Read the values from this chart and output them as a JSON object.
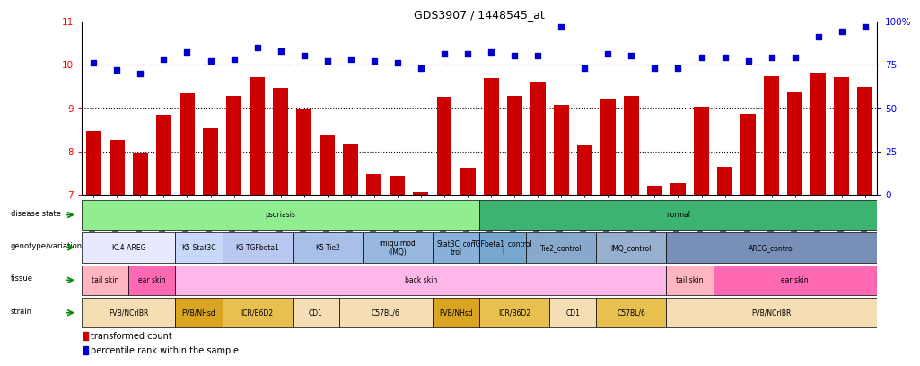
{
  "title": "GDS3907 / 1448545_at",
  "sample_ids": [
    "GSM684694",
    "GSM684695",
    "GSM684696",
    "GSM684688",
    "GSM684689",
    "GSM684690",
    "GSM684700",
    "GSM684701",
    "GSM684704",
    "GSM684705",
    "GSM684706",
    "GSM684676",
    "GSM684677",
    "GSM684678",
    "GSM684682",
    "GSM684683",
    "GSM684684",
    "GSM684702",
    "GSM684703",
    "GSM684707",
    "GSM684708",
    "GSM684709",
    "GSM684679",
    "GSM684680",
    "GSM684661",
    "GSM684685",
    "GSM684686",
    "GSM684687",
    "GSM684697",
    "GSM684698",
    "GSM684699",
    "GSM684691",
    "GSM684692",
    "GSM684693"
  ],
  "bar_values": [
    8.47,
    8.26,
    7.94,
    8.84,
    9.34,
    8.53,
    9.27,
    9.72,
    9.46,
    8.98,
    8.38,
    8.17,
    7.47,
    7.44,
    7.05,
    9.25,
    7.62,
    9.68,
    9.28,
    9.6,
    9.06,
    8.14,
    9.21,
    9.27,
    7.2,
    7.27,
    9.02,
    7.63,
    8.86,
    9.73,
    9.35,
    9.82,
    9.7,
    9.48
  ],
  "dot_pct": [
    76,
    72,
    70,
    78,
    82,
    77,
    78,
    85,
    83,
    80,
    77,
    78,
    77,
    76,
    73,
    81,
    81,
    82,
    80,
    80,
    97,
    73,
    81,
    80,
    73,
    73,
    79,
    79,
    77,
    79,
    79,
    91,
    94,
    97
  ],
  "ylim_left": [
    7,
    11
  ],
  "ylim_right": [
    0,
    100
  ],
  "yticks_left": [
    7,
    8,
    9,
    10,
    11
  ],
  "yticks_right": [
    0,
    25,
    50,
    75,
    100
  ],
  "bar_color": "#CC0000",
  "dot_color": "#0000CC",
  "annotation_rows": [
    {
      "label": "disease state",
      "segments": [
        {
          "text": "psoriasis",
          "start": 0,
          "end": 16,
          "color": "#90EE90"
        },
        {
          "text": "normal",
          "start": 17,
          "end": 33,
          "color": "#3CB371"
        }
      ]
    },
    {
      "label": "genotype/variation",
      "segments": [
        {
          "text": "K14-AREG",
          "start": 0,
          "end": 3,
          "color": "#E8E8FF"
        },
        {
          "text": "K5-Stat3C",
          "start": 4,
          "end": 5,
          "color": "#C8D8F8"
        },
        {
          "text": "K5-TGFbeta1",
          "start": 6,
          "end": 8,
          "color": "#B8C8F0"
        },
        {
          "text": "K5-Tie2",
          "start": 9,
          "end": 11,
          "color": "#A8C0E8"
        },
        {
          "text": "imiquimod\n(IMQ)",
          "start": 12,
          "end": 14,
          "color": "#98B8E0"
        },
        {
          "text": "Stat3C_con\ntrol",
          "start": 15,
          "end": 16,
          "color": "#88B0D8"
        },
        {
          "text": "TGFbeta1_control\nl",
          "start": 17,
          "end": 18,
          "color": "#78A8D0"
        },
        {
          "text": "Tie2_control",
          "start": 19,
          "end": 21,
          "color": "#88A8CC"
        },
        {
          "text": "IMQ_control",
          "start": 22,
          "end": 24,
          "color": "#98B0D0"
        },
        {
          "text": "AREG_control",
          "start": 25,
          "end": 33,
          "color": "#7890B8"
        }
      ]
    },
    {
      "label": "tissue",
      "segments": [
        {
          "text": "tail skin",
          "start": 0,
          "end": 1,
          "color": "#FFB6C1"
        },
        {
          "text": "ear skin",
          "start": 2,
          "end": 3,
          "color": "#FF69B4"
        },
        {
          "text": "back skin",
          "start": 4,
          "end": 24,
          "color": "#FFB6E8"
        },
        {
          "text": "tail skin",
          "start": 25,
          "end": 26,
          "color": "#FFB6C1"
        },
        {
          "text": "ear skin",
          "start": 27,
          "end": 33,
          "color": "#FF69B4"
        }
      ]
    },
    {
      "label": "strain",
      "segments": [
        {
          "text": "FVB/NCrIBR",
          "start": 0,
          "end": 3,
          "color": "#F5DEB3"
        },
        {
          "text": "FVB/NHsd",
          "start": 4,
          "end": 5,
          "color": "#DAA520"
        },
        {
          "text": "ICR/B6D2",
          "start": 6,
          "end": 8,
          "color": "#E8C050"
        },
        {
          "text": "CD1",
          "start": 9,
          "end": 10,
          "color": "#F5DEB3"
        },
        {
          "text": "C57BL/6",
          "start": 11,
          "end": 14,
          "color": "#F5DEB3"
        },
        {
          "text": "FVB/NHsd",
          "start": 15,
          "end": 16,
          "color": "#DAA520"
        },
        {
          "text": "ICR/B6D2",
          "start": 17,
          "end": 19,
          "color": "#E8C050"
        },
        {
          "text": "CD1",
          "start": 20,
          "end": 21,
          "color": "#F5DEB3"
        },
        {
          "text": "C57BL/6",
          "start": 22,
          "end": 24,
          "color": "#E8C050"
        },
        {
          "text": "FVB/NCrIBR",
          "start": 25,
          "end": 33,
          "color": "#F5DEB3"
        }
      ]
    }
  ]
}
